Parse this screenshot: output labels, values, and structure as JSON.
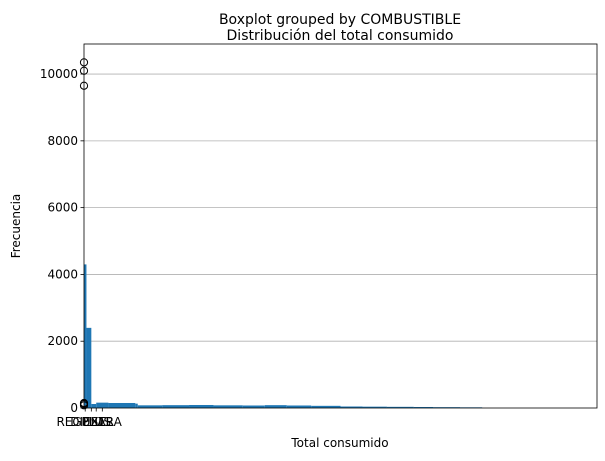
{
  "chart_data": {
    "type": "bar",
    "suptitle": "Boxplot grouped by COMBUSTIBLE",
    "title": "Distribución del total consumido",
    "xlabel": "Total consumido",
    "ylabel": "Frecuencia",
    "ylim": [
      0,
      10900
    ],
    "xlim": [
      1,
      22
    ],
    "grid": "y",
    "bar_color": "#1f77b4",
    "yticks": [
      0,
      2000,
      4000,
      6000,
      8000,
      10000
    ],
    "ytick_labels": [
      "0",
      "2000",
      "4000",
      "6000",
      "8000",
      "10000"
    ],
    "xtick_labels": [
      "REGULAR",
      "DIESEL",
      "PLUS",
      "EXTRA"
    ],
    "series": [
      {
        "name": "histogram",
        "bin_edges": [
          1,
          1.1,
          1.3,
          1.5,
          2,
          3.1,
          3.2,
          4.2,
          5.3,
          6.3,
          7.5,
          8.4,
          9.3,
          10.3,
          11.5,
          12.4,
          13.4,
          14.5,
          15.3,
          16.4,
          17.3
        ],
        "values": [
          4300,
          2400,
          120,
          160,
          150,
          130,
          80,
          85,
          90,
          80,
          75,
          85,
          75,
          65,
          45,
          40,
          35,
          30,
          25,
          20
        ]
      }
    ],
    "outliers": [
      {
        "group": "REGULAR",
        "values": [
          9650,
          10100,
          10350
        ]
      },
      {
        "group": "REGULAR",
        "values": [
          80,
          120,
          150
        ]
      }
    ]
  }
}
